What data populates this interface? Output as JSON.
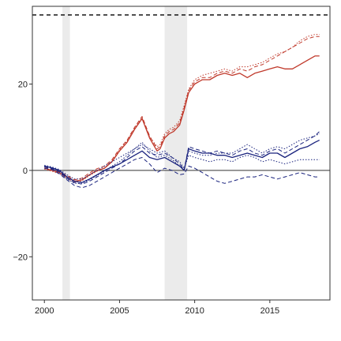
{
  "chart_data": {
    "type": "line",
    "title": "",
    "xlabel": "",
    "ylabel": "",
    "xlim": [
      1999.2,
      2019.0
    ],
    "ylim": [
      -30,
      38
    ],
    "x_ticks": [
      2000,
      2005,
      2010,
      2015
    ],
    "y_ticks": [
      -20,
      0,
      20
    ],
    "grid": false,
    "legend": "none",
    "reference_lines": [
      {
        "y": 36,
        "style": "dashed",
        "color": "#000000"
      },
      {
        "y": 0,
        "style": "solid",
        "color": "#333333"
      }
    ],
    "shaded_periods": [
      {
        "start": 2001.2,
        "end": 2001.7
      },
      {
        "start": 2008.0,
        "end": 2009.5
      }
    ],
    "series": [
      {
        "color": "#c0392b",
        "style": "solid",
        "x": [
          2000,
          2000.5,
          2001,
          2001.5,
          2002,
          2002.5,
          2003,
          2003.5,
          2004,
          2004.5,
          2005,
          2005.5,
          2006,
          2006.5,
          2007,
          2007.5,
          2007.7,
          2008,
          2008.3,
          2008.6,
          2009,
          2009.3,
          2009.6,
          2010,
          2010.5,
          2011,
          2011.5,
          2012,
          2012.5,
          2013,
          2013.5,
          2014,
          2014.5,
          2015,
          2015.5,
          2016,
          2016.5,
          2017,
          2017.5,
          2018,
          2018.3
        ],
        "y": [
          0.5,
          0,
          -0.5,
          -1.5,
          -2.5,
          -2.2,
          -1,
          0,
          0.5,
          2,
          4.5,
          6.5,
          9.5,
          12,
          7.5,
          4.5,
          5,
          7.5,
          8.5,
          9,
          10.5,
          14,
          18,
          20,
          21,
          21,
          22,
          22.5,
          22,
          22.5,
          21.5,
          22.5,
          23,
          23.5,
          24,
          23.5,
          23.5,
          24.5,
          25.5,
          26.5,
          26.5
        ]
      },
      {
        "color": "#c0392b",
        "style": "dashed",
        "x": [
          2000,
          2000.5,
          2001,
          2001.5,
          2002,
          2002.5,
          2003,
          2003.5,
          2004,
          2004.5,
          2005,
          2005.5,
          2006,
          2006.5,
          2007,
          2007.5,
          2007.7,
          2008,
          2008.3,
          2008.6,
          2009,
          2009.3,
          2009.6,
          2010,
          2010.5,
          2011,
          2011.5,
          2012,
          2012.5,
          2013,
          2013.5,
          2014,
          2014.5,
          2015,
          2015.5,
          2016,
          2016.5,
          2017,
          2017.5,
          2018,
          2018.3
        ],
        "y": [
          0.8,
          0.2,
          -0.3,
          -1.2,
          -2.2,
          -1.8,
          -0.6,
          0.4,
          1,
          2.5,
          5,
          7,
          10,
          12.5,
          8,
          5,
          5.5,
          8,
          9,
          9.5,
          11,
          14.5,
          18.5,
          20.5,
          21.5,
          21.5,
          22.5,
          23,
          22.5,
          23.5,
          23,
          24,
          24.5,
          25.5,
          26.5,
          27.5,
          28.5,
          29.5,
          30.5,
          31,
          31
        ]
      },
      {
        "color": "#c0392b",
        "style": "dotted",
        "x": [
          2000,
          2000.5,
          2001,
          2001.5,
          2002,
          2002.5,
          2003,
          2003.5,
          2004,
          2004.5,
          2005,
          2005.5,
          2006,
          2006.5,
          2007,
          2007.5,
          2007.7,
          2008,
          2008.3,
          2008.6,
          2009,
          2009.3,
          2009.6,
          2010,
          2010.5,
          2011,
          2011.5,
          2012,
          2012.5,
          2013,
          2013.5,
          2014,
          2014.5,
          2015,
          2015.5,
          2016,
          2016.5,
          2017,
          2017.5,
          2018,
          2018.3
        ],
        "y": [
          0.3,
          -0.2,
          -0.8,
          -1.8,
          -2.8,
          -2.4,
          -1.2,
          -0.2,
          0.6,
          2.2,
          4.8,
          6.8,
          9.8,
          12.2,
          7.8,
          5.5,
          6,
          8.5,
          9.5,
          10,
          11.5,
          15,
          18.8,
          21,
          22,
          22.5,
          23,
          23.5,
          23,
          24,
          24,
          24.5,
          25,
          26,
          27,
          27.5,
          28.5,
          30,
          31,
          31.5,
          31.5
        ]
      },
      {
        "color": "#1a237e",
        "style": "solid",
        "x": [
          2000,
          2000.5,
          2001,
          2001.5,
          2002,
          2002.5,
          2003,
          2003.5,
          2004,
          2004.5,
          2005,
          2005.5,
          2006,
          2006.5,
          2007,
          2007.5,
          2008,
          2008.5,
          2009,
          2009.3,
          2009.6,
          2010,
          2010.5,
          2011,
          2011.5,
          2012,
          2012.5,
          2013,
          2013.5,
          2014,
          2014.5,
          2015,
          2015.5,
          2016,
          2016.5,
          2017,
          2017.5,
          2018,
          2018.3
        ],
        "y": [
          1,
          0.6,
          0,
          -1.5,
          -2.5,
          -2.8,
          -2,
          -1,
          0,
          0.8,
          1.5,
          2.5,
          3.5,
          4.5,
          3,
          2.5,
          3,
          2,
          1,
          0,
          5,
          4.5,
          4,
          4,
          3.5,
          3.5,
          3,
          3.5,
          4,
          3.5,
          3,
          4,
          4,
          3,
          4,
          5,
          5.5,
          6.5,
          7
        ]
      },
      {
        "color": "#1a237e",
        "style": "dashed",
        "x": [
          2000,
          2000.5,
          2001,
          2001.5,
          2002,
          2002.5,
          2003,
          2003.5,
          2004,
          2004.5,
          2005,
          2005.5,
          2006,
          2006.5,
          2007,
          2007.5,
          2008,
          2008.5,
          2009,
          2009.3,
          2009.6,
          2010,
          2010.5,
          2011,
          2011.5,
          2012,
          2012.5,
          2013,
          2013.5,
          2014,
          2014.5,
          2015,
          2015.5,
          2016,
          2016.5,
          2017,
          2017.5,
          2018,
          2018.3
        ],
        "y": [
          0.8,
          0.4,
          -0.3,
          -1.8,
          -2.8,
          -3.2,
          -2.5,
          -1.5,
          -0.5,
          0.5,
          1.5,
          3,
          4.5,
          5.5,
          4,
          3.5,
          4,
          3,
          1.5,
          0.2,
          5.5,
          5,
          4.5,
          4,
          4.5,
          4,
          3.5,
          4.5,
          5,
          4,
          3.5,
          4.5,
          5,
          4,
          5,
          6,
          7,
          8,
          9
        ]
      },
      {
        "color": "#1a237e",
        "style": "dashed",
        "x": [
          2000,
          2000.5,
          2001,
          2001.5,
          2002,
          2002.5,
          2003,
          2003.5,
          2004,
          2004.5,
          2005,
          2005.5,
          2006,
          2006.5,
          2007,
          2007.5,
          2008,
          2008.5,
          2009,
          2009.3,
          2009.6,
          2010,
          2010.5,
          2011,
          2011.5,
          2012,
          2012.5,
          2013,
          2013.5,
          2014,
          2014.5,
          2015,
          2015.5,
          2016,
          2016.5,
          2017,
          2017.5,
          2018,
          2018.3
        ],
        "y": [
          0.5,
          0.2,
          -0.8,
          -2.2,
          -3.5,
          -4,
          -3.5,
          -2.5,
          -1.5,
          -0.5,
          0.5,
          1.5,
          2.5,
          3,
          1.5,
          -0.5,
          0.5,
          0,
          -1,
          -0.8,
          1,
          0.5,
          -0.5,
          -1.5,
          -2.5,
          -3,
          -2.5,
          -2,
          -1.5,
          -1.5,
          -1,
          -1.5,
          -2,
          -1.5,
          -1,
          -0.5,
          -1,
          -1.5,
          -1.5
        ]
      },
      {
        "color": "#1a237e",
        "style": "dotted",
        "x": [
          2000,
          2000.5,
          2001,
          2001.5,
          2002,
          2002.5,
          2003,
          2003.5,
          2004,
          2004.5,
          2005,
          2005.5,
          2006,
          2006.5,
          2007,
          2007.5,
          2008,
          2008.5,
          2009,
          2009.3,
          2009.6,
          2010,
          2010.5,
          2011,
          2011.5,
          2012,
          2012.5,
          2013,
          2013.5,
          2014,
          2014.5,
          2015,
          2015.5,
          2016,
          2016.5,
          2017,
          2017.5,
          2018,
          2018.3
        ],
        "y": [
          1.2,
          0.8,
          0.2,
          -1,
          -2,
          -2,
          -1,
          0,
          1,
          2,
          3,
          4,
          5,
          6,
          5,
          4,
          4.5,
          3,
          2,
          0.5,
          3.5,
          3,
          2.5,
          2,
          2.5,
          2.5,
          2,
          3,
          3.5,
          3,
          2,
          2.5,
          2,
          1.5,
          2,
          2.5,
          2.5,
          2.5,
          2.5
        ]
      },
      {
        "color": "#1a237e",
        "style": "dotted",
        "x": [
          2000,
          2000.5,
          2001,
          2001.5,
          2002,
          2002.5,
          2003,
          2003.5,
          2004,
          2004.5,
          2005,
          2005.5,
          2006,
          2006.5,
          2007,
          2007.5,
          2008,
          2008.5,
          2009,
          2009.3,
          2009.6,
          2010,
          2010.5,
          2011,
          2011.5,
          2012,
          2012.5,
          2013,
          2013.5,
          2014,
          2014.5,
          2015,
          2015.5,
          2016,
          2016.5,
          2017,
          2017.5,
          2018,
          2018.3
        ],
        "y": [
          0.9,
          0.5,
          -0.5,
          -2,
          -3,
          -3,
          -2.2,
          -1.2,
          -0.2,
          1,
          2,
          3.5,
          5,
          6.5,
          4.5,
          3,
          3.5,
          2.5,
          1,
          0.3,
          4.5,
          4,
          3.5,
          3.5,
          4,
          4,
          4,
          5,
          6,
          5,
          4,
          5,
          5.5,
          5,
          6,
          7,
          7.5,
          8,
          8.5
        ]
      }
    ]
  }
}
